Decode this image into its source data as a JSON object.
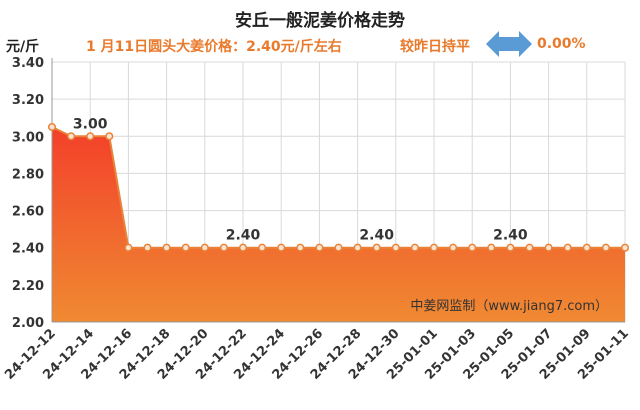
{
  "header": {
    "title": "安丘一般泥姜价格走势",
    "unit": "元/斤",
    "price_note": "1 月11日圆头大姜价格：2.40元/斤左右",
    "compare_label": "较昨日持平",
    "change_pct": "0.00%"
  },
  "arrow_icon": "double-arrow-icon",
  "colors": {
    "accent": "#e97a2c",
    "arrow": "#5b9bd5",
    "area_top": "#f2402a",
    "area_bottom": "#f08a32",
    "line": "#e8833a"
  },
  "watermark": "中姜网监制（www.jiang7.com）",
  "chart_data": {
    "type": "area",
    "title": "安丘一般泥姜价格走势",
    "ylabel": "元/斤",
    "ylim": [
      2.0,
      3.4
    ],
    "yticks": [
      "2.00",
      "2.20",
      "2.40",
      "2.60",
      "2.80",
      "3.00",
      "3.20",
      "3.40"
    ],
    "grid": true,
    "x_tick_labels": [
      "24-12-12",
      "24-12-14",
      "24-12-16",
      "24-12-18",
      "24-12-20",
      "24-12-22",
      "24-12-24",
      "24-12-26",
      "24-12-28",
      "24-12-30",
      "25-01-01",
      "25-01-03",
      "25-01-05",
      "25-01-07",
      "25-01-09",
      "25-01-11"
    ],
    "x": [
      "24-12-12",
      "24-12-13",
      "24-12-14",
      "24-12-15",
      "24-12-16",
      "24-12-17",
      "24-12-18",
      "24-12-19",
      "24-12-20",
      "24-12-21",
      "24-12-22",
      "24-12-23",
      "24-12-24",
      "24-12-25",
      "24-12-26",
      "24-12-27",
      "24-12-28",
      "24-12-29",
      "24-12-30",
      "24-12-31",
      "25-01-01",
      "25-01-02",
      "25-01-03",
      "25-01-04",
      "25-01-05",
      "25-01-06",
      "25-01-07",
      "25-01-08",
      "25-01-09",
      "25-01-10",
      "25-01-11"
    ],
    "values": [
      3.05,
      3.0,
      3.0,
      3.0,
      2.4,
      2.4,
      2.4,
      2.4,
      2.4,
      2.4,
      2.4,
      2.4,
      2.4,
      2.4,
      2.4,
      2.4,
      2.4,
      2.4,
      2.4,
      2.4,
      2.4,
      2.4,
      2.4,
      2.4,
      2.4,
      2.4,
      2.4,
      2.4,
      2.4,
      2.4,
      2.4
    ],
    "data_labels": [
      {
        "index": 2,
        "text": "3.00"
      },
      {
        "index": 10,
        "text": "2.40"
      },
      {
        "index": 17,
        "text": "2.40"
      },
      {
        "index": 24,
        "text": "2.40"
      }
    ]
  }
}
